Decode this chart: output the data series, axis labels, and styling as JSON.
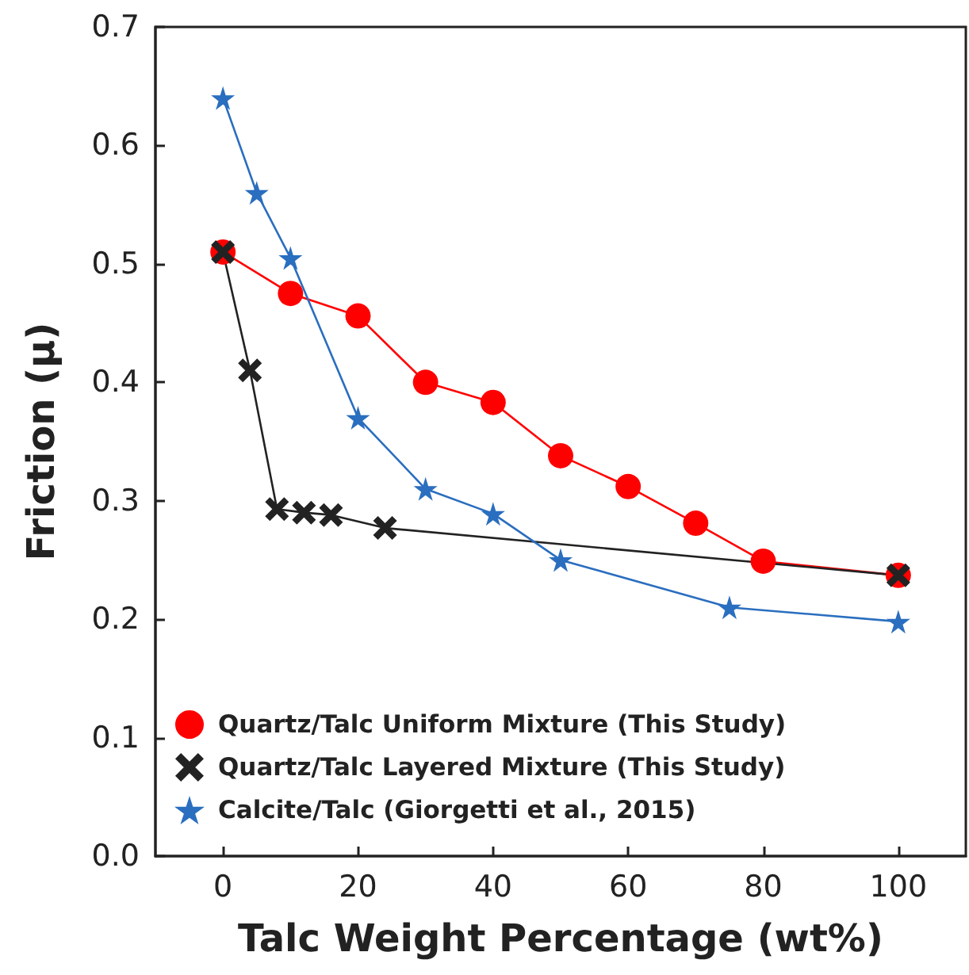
{
  "chart_data": {
    "type": "line",
    "xlabel": "Talc Weight Percentage (wt%)",
    "ylabel": "Friction (μ)",
    "xlim": [
      -10,
      110
    ],
    "xticks": [
      0,
      20,
      40,
      60,
      80,
      100
    ],
    "ylim": [
      0,
      0.7
    ],
    "yticks": [
      {
        "value": 0,
        "label": "0.0"
      },
      {
        "value": 0.1,
        "label": "0.1"
      },
      {
        "value": 0.2,
        "label": "0.2"
      },
      {
        "value": 0.3,
        "label": "0.3"
      },
      {
        "value": 0.4,
        "label": "0.4"
      },
      {
        "value": 0.5,
        "label": "0.5"
      },
      {
        "value": 0.6,
        "label": "0.6"
      },
      {
        "value": 0.7,
        "label": "0.7"
      }
    ],
    "grid": false,
    "legend": "bottom left",
    "line_style": "solid",
    "series": [
      {
        "name": "Quartz/Talc Uniform Mixture (This Study)",
        "color": "#ff0000",
        "marker": "circle",
        "x": [
          0,
          10,
          20,
          30,
          40,
          50,
          60,
          70,
          80,
          100
        ],
        "values": [
          0.51,
          0.475,
          0.456,
          0.4,
          0.383,
          0.338,
          0.312,
          0.281,
          0.249,
          0.237
        ]
      },
      {
        "name": "Quartz/Talc Layered Mixture (This Study)",
        "color": "#222222",
        "marker": "cross",
        "x": [
          0,
          4,
          8,
          12,
          16,
          24,
          100
        ],
        "values": [
          0.51,
          0.41,
          0.293,
          0.29,
          0.288,
          0.277,
          0.237
        ]
      },
      {
        "name": "Calcite/Talc (Giorgetti et al., 2015)",
        "color": "#2a6ebf",
        "marker": "star",
        "x": [
          0,
          5,
          10,
          20,
          30,
          40,
          50,
          75,
          100
        ],
        "values": [
          0.64,
          0.56,
          0.505,
          0.37,
          0.31,
          0.289,
          0.25,
          0.21,
          0.198
        ]
      }
    ]
  }
}
